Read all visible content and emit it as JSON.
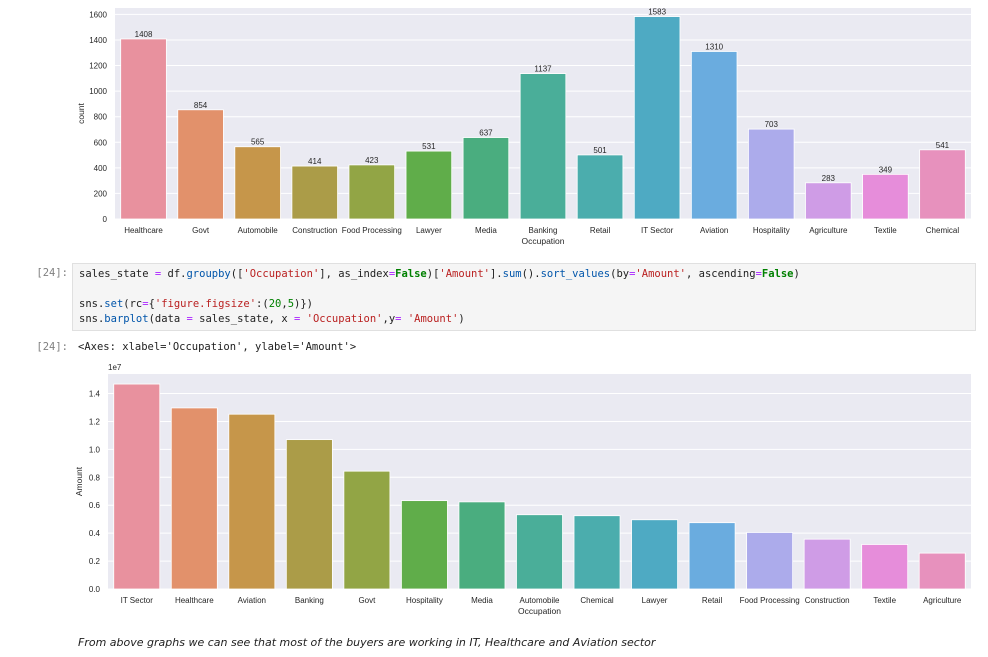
{
  "notebook": {
    "in_prompt": "[24]:",
    "out_prompt": "[24]:",
    "code_lines": [
      [
        {
          "t": "name",
          "v": "sales_state "
        },
        {
          "t": "op",
          "v": "="
        },
        {
          "t": "name",
          "v": " df."
        },
        {
          "t": "attr",
          "v": "groupby"
        },
        {
          "t": "name",
          "v": "(["
        },
        {
          "t": "str",
          "v": "'Occupation'"
        },
        {
          "t": "name",
          "v": "], as_index"
        },
        {
          "t": "op",
          "v": "="
        },
        {
          "t": "kw",
          "v": "False"
        },
        {
          "t": "name",
          "v": ")["
        },
        {
          "t": "str",
          "v": "'Amount'"
        },
        {
          "t": "name",
          "v": "]."
        },
        {
          "t": "attr",
          "v": "sum"
        },
        {
          "t": "name",
          "v": "()."
        },
        {
          "t": "attr",
          "v": "sort_values"
        },
        {
          "t": "name",
          "v": "(by"
        },
        {
          "t": "op",
          "v": "="
        },
        {
          "t": "str",
          "v": "'Amount'"
        },
        {
          "t": "name",
          "v": ", ascending"
        },
        {
          "t": "op",
          "v": "="
        },
        {
          "t": "kw",
          "v": "False"
        },
        {
          "t": "name",
          "v": ")"
        }
      ],
      [],
      [
        {
          "t": "name",
          "v": "sns."
        },
        {
          "t": "attr",
          "v": "set"
        },
        {
          "t": "name",
          "v": "(rc"
        },
        {
          "t": "op",
          "v": "="
        },
        {
          "t": "name",
          "v": "{"
        },
        {
          "t": "str",
          "v": "'figure.figsize'"
        },
        {
          "t": "name",
          "v": ":("
        },
        {
          "t": "num",
          "v": "20"
        },
        {
          "t": "name",
          "v": ","
        },
        {
          "t": "num",
          "v": "5"
        },
        {
          "t": "name",
          "v": ")})"
        }
      ],
      [
        {
          "t": "name",
          "v": "sns."
        },
        {
          "t": "attr",
          "v": "barplot"
        },
        {
          "t": "name",
          "v": "(data "
        },
        {
          "t": "op",
          "v": "="
        },
        {
          "t": "name",
          "v": " sales_state, x "
        },
        {
          "t": "op",
          "v": "="
        },
        {
          "t": "name",
          "v": " "
        },
        {
          "t": "str",
          "v": "'Occupation'"
        },
        {
          "t": "name",
          "v": ",y"
        },
        {
          "t": "op",
          "v": "="
        },
        {
          "t": "name",
          "v": " "
        },
        {
          "t": "str",
          "v": "'Amount'"
        },
        {
          "t": "name",
          "v": ")"
        }
      ]
    ],
    "output_text": "<Axes: xlabel='Occupation', ylabel='Amount'>",
    "caption": "From above graphs we can see that most of the buyers are working in IT, Healthcare and Aviation sector"
  },
  "palette": [
    "#e8919e",
    "#e2916b",
    "#c6964a",
    "#ab9c48",
    "#92a545",
    "#60ad4a",
    "#4aad7f",
    "#4aae99",
    "#4badad",
    "#4eaac3",
    "#6aacdf",
    "#acabeb",
    "#cf9ce6",
    "#e68dda",
    "#e791bd"
  ],
  "chart_data": [
    {
      "type": "bar",
      "title": "",
      "xlabel": "Occupation",
      "ylabel": "count",
      "ylim": [
        0,
        1650
      ],
      "yticks": [
        0,
        200,
        400,
        600,
        800,
        1000,
        1200,
        1400,
        1600
      ],
      "ytick_labels": [
        "0",
        "200",
        "400",
        "600",
        "800",
        "1000",
        "1200",
        "1400",
        "1600"
      ],
      "grid": true,
      "show_value_labels": true,
      "categories": [
        "Healthcare",
        "Govt",
        "Automobile",
        "Construction",
        "Food Processing",
        "Lawyer",
        "Media",
        "Banking",
        "Retail",
        "IT Sector",
        "Aviation",
        "Hospitality",
        "Agriculture",
        "Textile",
        "Chemical"
      ],
      "values": [
        1408,
        854,
        565,
        414,
        423,
        531,
        637,
        1137,
        501,
        1583,
        1310,
        703,
        283,
        349,
        541
      ]
    },
    {
      "type": "bar",
      "title": "",
      "xlabel": "Occupation",
      "ylabel": "Amount",
      "offset_label": "1e7",
      "ylim": [
        0,
        1.54
      ],
      "yticks": [
        0,
        0.2,
        0.4,
        0.6,
        0.8,
        1.0,
        1.2,
        1.4
      ],
      "ytick_labels": [
        "0.0",
        "0.2",
        "0.4",
        "0.6",
        "0.8",
        "1.0",
        "1.2",
        "1.4"
      ],
      "grid": true,
      "show_value_labels": false,
      "categories": [
        "IT Sector",
        "Healthcare",
        "Aviation",
        "Banking",
        "Govt",
        "Hospitality",
        "Media",
        "Automobile",
        "Chemical",
        "Lawyer",
        "Retail",
        "Food Processing",
        "Construction",
        "Textile",
        "Agriculture"
      ],
      "values": [
        1.468,
        1.297,
        1.252,
        1.07,
        0.844,
        0.633,
        0.624,
        0.532,
        0.525,
        0.496,
        0.475,
        0.405,
        0.357,
        0.319,
        0.257
      ],
      "value_unit": "x 1e7"
    }
  ]
}
